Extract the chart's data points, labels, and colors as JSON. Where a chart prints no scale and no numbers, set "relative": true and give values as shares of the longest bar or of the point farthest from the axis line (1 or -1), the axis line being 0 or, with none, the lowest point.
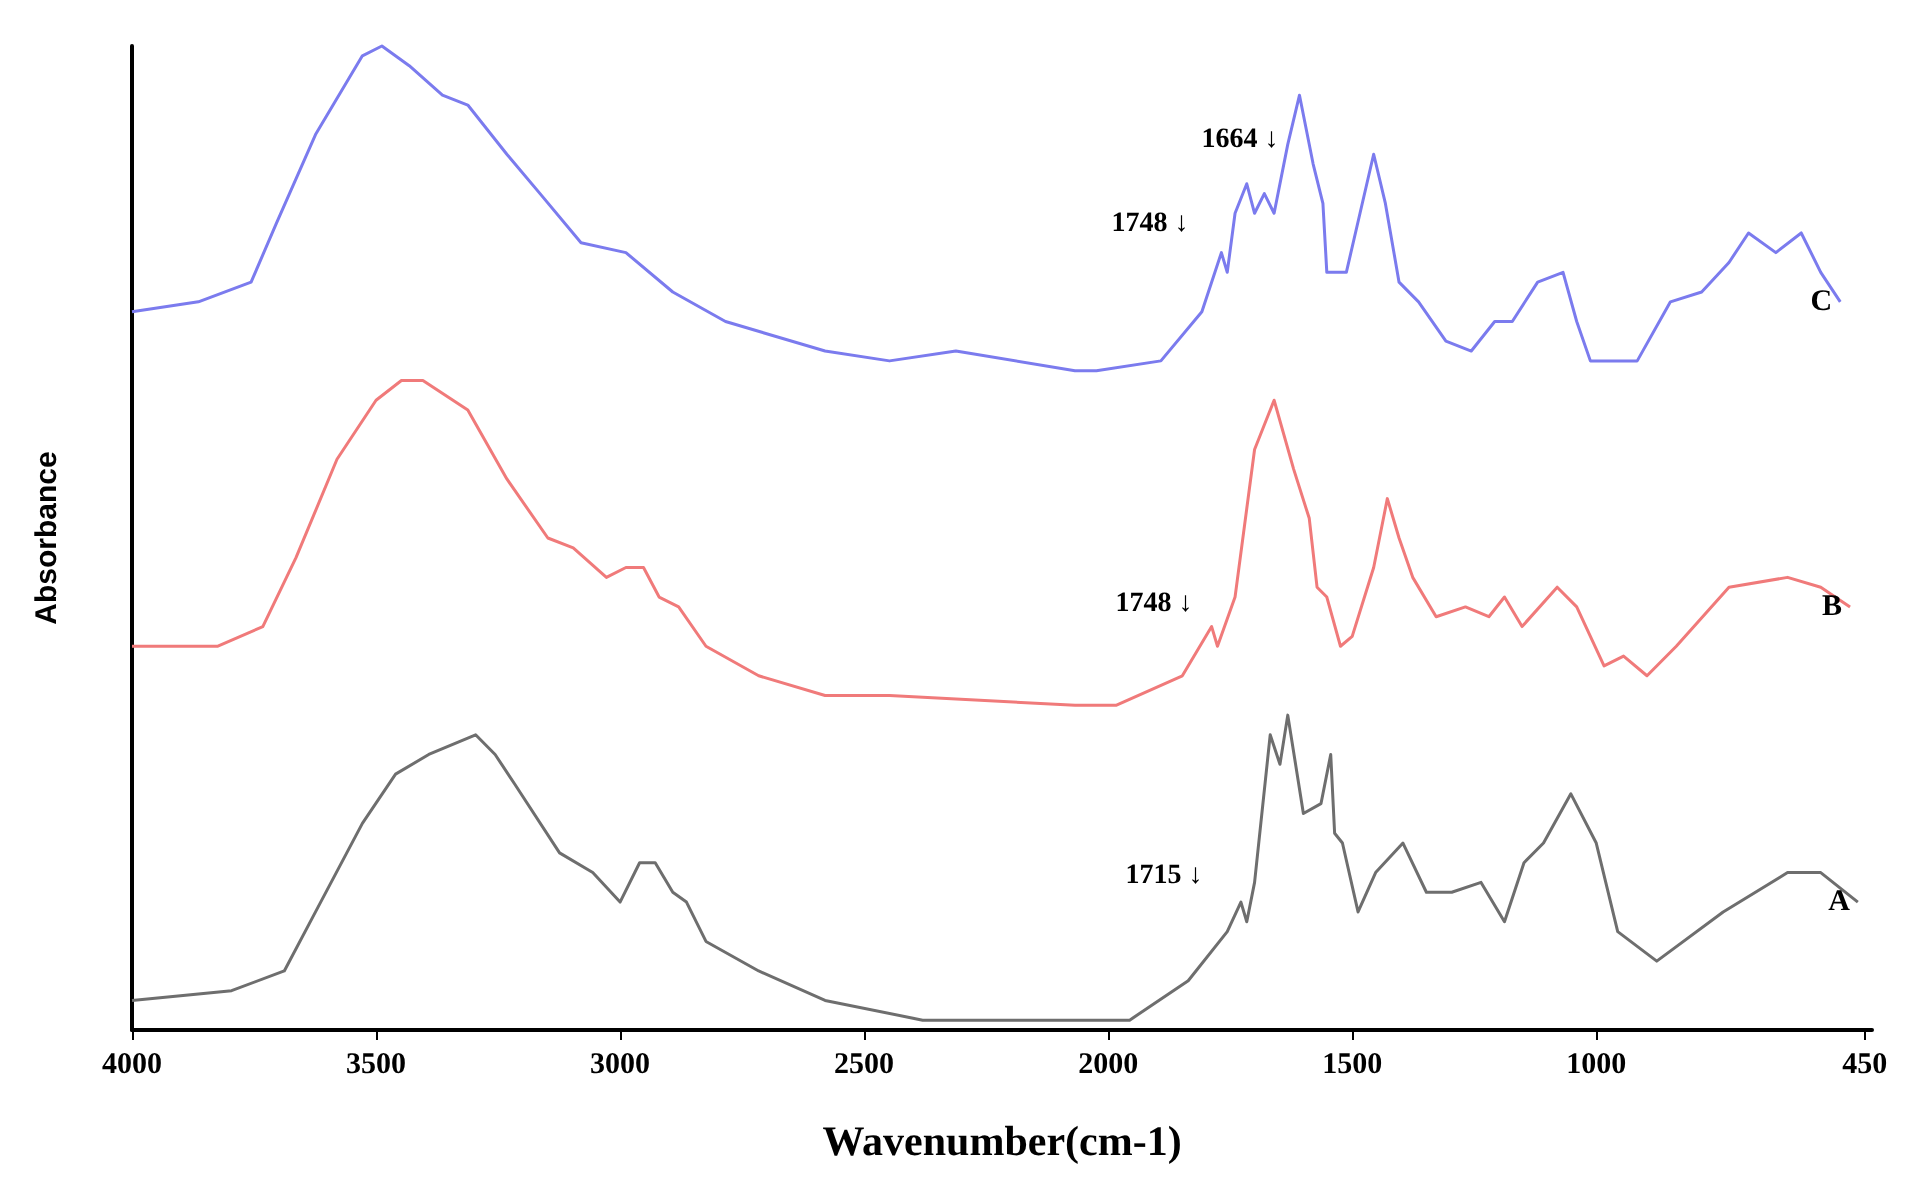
{
  "chart_data": {
    "type": "line",
    "relative": true,
    "xlabel": "Wavenumber(cm-1)",
    "ylabel": "Absorbance",
    "xlim": [
      4000,
      435
    ],
    "xticks": [
      4000,
      3500,
      3000,
      2500,
      2000,
      1500,
      1000,
      450
    ],
    "grid": false,
    "legend": false,
    "marker": "none",
    "line_style": "solid",
    "series": [
      {
        "name": "C",
        "color": "#7b7bee",
        "x": [
          4000,
          3864,
          3756,
          3704,
          3624,
          3528,
          3488,
          3432,
          3364,
          3312,
          3232,
          3164,
          3080,
          2988,
          2892,
          2784,
          2580,
          2448,
          2312,
          2068,
          2024,
          1892,
          1808,
          1768,
          1756,
          1740,
          1716,
          1700,
          1680,
          1660,
          1632,
          1608,
          1580,
          1560,
          1552,
          1512,
          1484,
          1456,
          1432,
          1404,
          1364,
          1308,
          1256,
          1208,
          1172,
          1120,
          1068,
          1040,
          1012,
          956,
          916,
          848,
          784,
          728,
          688,
          632,
          580,
          540,
          500
        ],
        "values": [
          0.73,
          0.74,
          0.76,
          0.82,
          0.91,
          0.99,
          1.0,
          0.98,
          0.95,
          0.94,
          0.89,
          0.85,
          0.8,
          0.79,
          0.75,
          0.72,
          0.69,
          0.68,
          0.69,
          0.67,
          0.67,
          0.68,
          0.73,
          0.79,
          0.77,
          0.83,
          0.86,
          0.83,
          0.85,
          0.83,
          0.9,
          0.95,
          0.88,
          0.84,
          0.77,
          0.77,
          0.83,
          0.89,
          0.84,
          0.76,
          0.74,
          0.7,
          0.69,
          0.72,
          0.72,
          0.76,
          0.77,
          0.72,
          0.68,
          0.68,
          0.68,
          0.74,
          0.75,
          0.78,
          0.81,
          0.79,
          0.81,
          0.77,
          0.74
        ]
      },
      {
        "name": "B",
        "color": "#f07a7a",
        "x": [
          4000,
          3824,
          3732,
          3664,
          3580,
          3500,
          3448,
          3404,
          3312,
          3232,
          3148,
          3096,
          3028,
          2988,
          2952,
          2920,
          2880,
          2824,
          2716,
          2580,
          2448,
          2068,
          1984,
          1848,
          1788,
          1776,
          1740,
          1700,
          1660,
          1620,
          1588,
          1572,
          1552,
          1524,
          1500,
          1456,
          1428,
          1404,
          1376,
          1328,
          1268,
          1220,
          1188,
          1152,
          1080,
          1040,
          984,
          944,
          896,
          836,
          728,
          608,
          540,
          480
        ],
        "values": [
          0.39,
          0.39,
          0.41,
          0.48,
          0.58,
          0.64,
          0.66,
          0.66,
          0.63,
          0.56,
          0.5,
          0.49,
          0.46,
          0.47,
          0.47,
          0.44,
          0.43,
          0.39,
          0.36,
          0.34,
          0.34,
          0.33,
          0.33,
          0.36,
          0.41,
          0.39,
          0.44,
          0.59,
          0.64,
          0.57,
          0.52,
          0.45,
          0.44,
          0.39,
          0.4,
          0.47,
          0.54,
          0.5,
          0.46,
          0.42,
          0.43,
          0.42,
          0.44,
          0.41,
          0.45,
          0.43,
          0.37,
          0.38,
          0.36,
          0.39,
          0.45,
          0.46,
          0.45,
          0.43
        ]
      },
      {
        "name": "A",
        "color": "#6e6e6e",
        "x": [
          4000,
          3796,
          3688,
          3624,
          3528,
          3460,
          3392,
          3296,
          3256,
          3216,
          3124,
          3056,
          3000,
          2960,
          2928,
          2892,
          2864,
          2824,
          2716,
          2580,
          2380,
          2176,
          2068,
          1956,
          1836,
          1756,
          1728,
          1716,
          1700,
          1668,
          1648,
          1632,
          1600,
          1564,
          1544,
          1536,
          1520,
          1488,
          1452,
          1396,
          1348,
          1296,
          1236,
          1188,
          1148,
          1108,
          1052,
          1000,
          956,
          876,
          740,
          608,
          540,
          464
        ],
        "values": [
          0.03,
          0.04,
          0.06,
          0.12,
          0.21,
          0.26,
          0.28,
          0.3,
          0.28,
          0.25,
          0.18,
          0.16,
          0.13,
          0.17,
          0.17,
          0.14,
          0.13,
          0.09,
          0.06,
          0.03,
          0.01,
          0.01,
          0.01,
          0.01,
          0.05,
          0.1,
          0.13,
          0.11,
          0.15,
          0.3,
          0.27,
          0.32,
          0.22,
          0.23,
          0.28,
          0.2,
          0.19,
          0.12,
          0.16,
          0.19,
          0.14,
          0.14,
          0.15,
          0.11,
          0.17,
          0.19,
          0.24,
          0.19,
          0.1,
          0.07,
          0.12,
          0.16,
          0.16,
          0.13
        ]
      }
    ],
    "annotations": [
      "1664 ↓",
      "1748 ↓",
      "1748 ↓",
      "1715 ↓"
    ]
  }
}
